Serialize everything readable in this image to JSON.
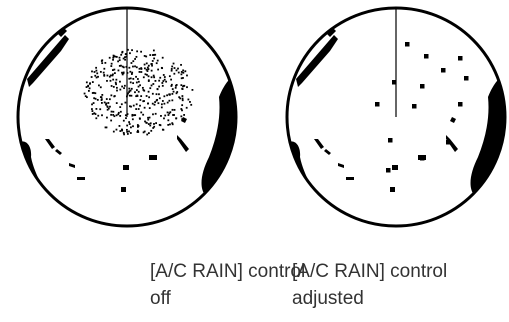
{
  "panels": [
    {
      "caption": [
        "[A/C RAIN] control",
        "off"
      ]
    },
    {
      "caption": [
        "[A/C RAIN] control",
        "adjusted"
      ]
    }
  ]
}
